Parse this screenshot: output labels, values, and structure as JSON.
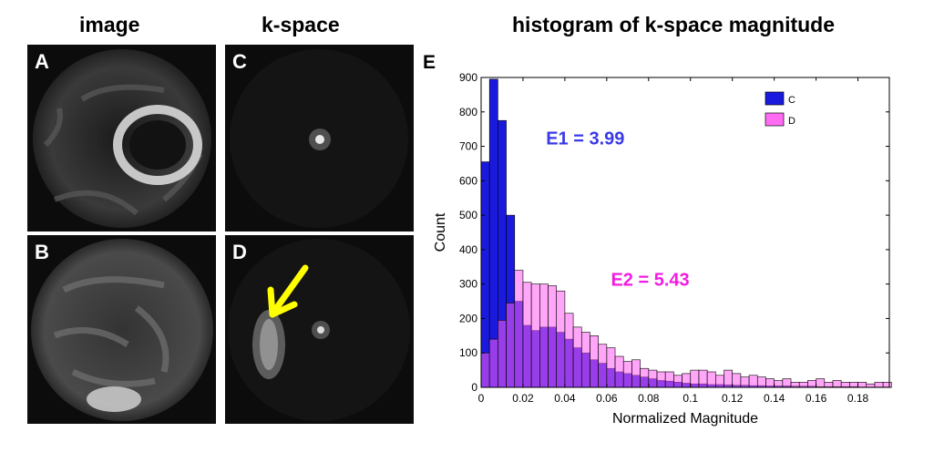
{
  "column_titles": {
    "image": "image",
    "kspace": "k-space",
    "histogram": "histogram of k-space magnitude"
  },
  "panels": {
    "A": "A",
    "B": "B",
    "C": "C",
    "D": "D"
  },
  "panel_E_label": "E",
  "arrow_color": "#ffff00",
  "chart_data": {
    "type": "bar",
    "title": "histogram of k-space magnitude",
    "xlabel": "Normalized Magnitude",
    "ylabel": "Count",
    "xlim": [
      0,
      0.195
    ],
    "ylim": [
      0,
      900
    ],
    "bin_width": 0.004,
    "x_ticks": [
      0,
      0.02,
      0.04,
      0.06,
      0.08,
      0.1,
      0.12,
      0.14,
      0.16,
      0.18
    ],
    "x_tick_labels": [
      "0",
      "0.02",
      "0.04",
      "0.06",
      "0.08",
      "0.1",
      "0.12",
      "0.14",
      "0.16",
      "0.18"
    ],
    "y_ticks": [
      0,
      100,
      200,
      300,
      400,
      500,
      600,
      700,
      800,
      900
    ],
    "y_tick_labels": [
      "0",
      "100",
      "200",
      "300",
      "400",
      "500",
      "600",
      "700",
      "800",
      "900"
    ],
    "bin_starts": [
      0.0,
      0.004,
      0.008,
      0.012,
      0.016,
      0.02,
      0.024,
      0.028,
      0.032,
      0.036,
      0.04,
      0.044,
      0.048,
      0.052,
      0.056,
      0.06,
      0.064,
      0.068,
      0.072,
      0.076,
      0.08,
      0.084,
      0.088,
      0.092,
      0.096,
      0.1,
      0.104,
      0.108,
      0.112,
      0.116,
      0.12,
      0.124,
      0.128,
      0.132,
      0.136,
      0.14,
      0.144,
      0.148,
      0.152,
      0.156,
      0.16,
      0.164,
      0.168,
      0.172,
      0.176,
      0.18,
      0.184,
      0.188,
      0.192
    ],
    "series": [
      {
        "name": "C",
        "color": "#1a1adf",
        "values": [
          655,
          895,
          775,
          500,
          250,
          180,
          165,
          175,
          175,
          160,
          140,
          115,
          100,
          80,
          70,
          55,
          45,
          40,
          35,
          30,
          25,
          20,
          18,
          15,
          12,
          10,
          10,
          8,
          8,
          7,
          6,
          6,
          5,
          5,
          4,
          4,
          4,
          3,
          3,
          3,
          2,
          2,
          2,
          2,
          2,
          1,
          1,
          1,
          1
        ]
      },
      {
        "name": "D",
        "color": "#ff5cf2",
        "values": [
          100,
          140,
          195,
          245,
          340,
          305,
          300,
          300,
          295,
          280,
          215,
          175,
          160,
          150,
          125,
          115,
          90,
          75,
          80,
          55,
          50,
          45,
          45,
          35,
          40,
          50,
          50,
          45,
          35,
          50,
          40,
          30,
          35,
          30,
          25,
          20,
          25,
          15,
          15,
          20,
          25,
          15,
          20,
          15,
          15,
          15,
          10,
          15,
          15
        ]
      }
    ],
    "annotations": [
      {
        "text": "E1 = 3.99",
        "color": "#3a3ae6",
        "x": 0.031,
        "y": 705
      },
      {
        "text": "E2 = 5.43",
        "color": "#f21ce0",
        "x": 0.062,
        "y": 295
      }
    ],
    "legend_position": "top-right"
  }
}
